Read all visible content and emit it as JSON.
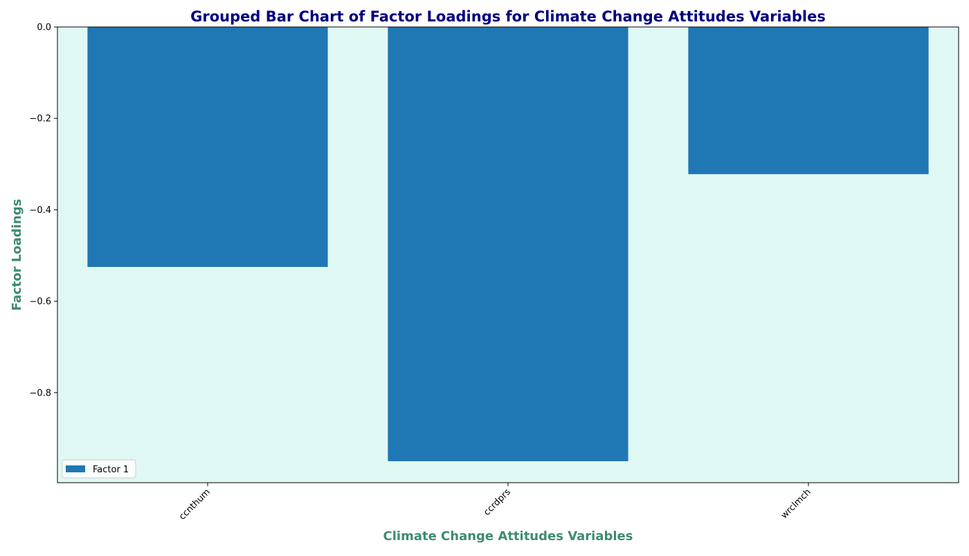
{
  "chart_data": {
    "type": "bar",
    "title": "Grouped Bar Chart of Factor Loadings for Climate Change Attitudes Variables",
    "xlabel": "Climate Change Attitudes Variables",
    "ylabel": "Factor Loadings",
    "categories": [
      "ccnthum",
      "ccrdprs",
      "wrclmch"
    ],
    "series": [
      {
        "name": "Factor 1",
        "values": [
          -0.525,
          -0.95,
          -0.322
        ],
        "color": "#1f77b4"
      }
    ],
    "ylim": [
      -0.997,
      0.0
    ],
    "yticks": [
      0.0,
      -0.2,
      -0.4,
      -0.6,
      -0.8
    ],
    "ytick_labels": [
      "0.0",
      "−0.2",
      "−0.4",
      "−0.6",
      "−0.8"
    ],
    "grid": false,
    "legend_position": "lower-left",
    "colors": {
      "plot_background": "#e0f8f4",
      "title": "#000080",
      "axis_label": "#3d8b71",
      "bar": "#1f77b4"
    }
  }
}
